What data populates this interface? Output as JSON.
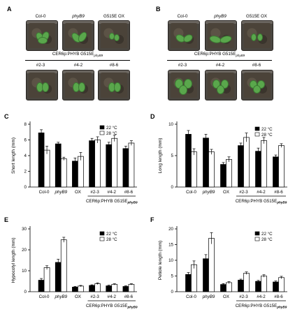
{
  "panels": {
    "A": {
      "label": "A",
      "top_labels": [
        "Col-0",
        "phyB9",
        "G515E OX"
      ],
      "construct": "CER6p:PHYB G515E",
      "construct_sub": "phyB9",
      "bottom_labels": [
        "#2-3",
        "#4-2",
        "#8-6"
      ]
    },
    "B": {
      "label": "B",
      "top_labels": [
        "Col-0",
        "phyB9",
        "G515E OX"
      ],
      "construct": "CER6p:PHYB G515E",
      "construct_sub": "phyB9",
      "bottom_labels": [
        "#2-3",
        "#4-2",
        "#8-6"
      ]
    }
  },
  "legend": {
    "s22": "22 °C",
    "s28": "28 °C"
  },
  "group_label": "CER6p:PHYB G515E",
  "group_label_sub": "phyB9",
  "chart_data": [
    {
      "id": "C",
      "type": "bar",
      "ylabel": "Short length (mm)",
      "ylim": [
        0,
        8
      ],
      "yticks": [
        0,
        2,
        4,
        6,
        8
      ],
      "categories": [
        "Col-0",
        "phyB9",
        "OX",
        "#2-3",
        "#4-2",
        "#8-6"
      ],
      "series": [
        {
          "name": "22 °C",
          "values": [
            6.9,
            5.5,
            3.3,
            5.9,
            5.4,
            4.9
          ],
          "errors": [
            0.4,
            0.2,
            0.4,
            0.3,
            0.3,
            0.3
          ]
        },
        {
          "name": "28 °C",
          "values": [
            4.7,
            3.6,
            3.9,
            6.0,
            6.2,
            5.6
          ],
          "errors": [
            0.5,
            0.2,
            0.5,
            0.4,
            0.4,
            0.3
          ]
        }
      ]
    },
    {
      "id": "D",
      "type": "bar",
      "ylabel": "Long length (mm)",
      "ylim": [
        0,
        10
      ],
      "yticks": [
        0,
        5,
        10
      ],
      "categories": [
        "Col-0",
        "phyB9",
        "OX",
        "#2-3",
        "#4-2",
        "#8-6"
      ],
      "series": [
        {
          "name": "22 °C",
          "values": [
            8.4,
            7.8,
            3.6,
            6.6,
            5.7,
            4.8
          ],
          "errors": [
            0.6,
            0.6,
            0.3,
            0.4,
            0.5,
            0.3
          ]
        },
        {
          "name": "28 °C",
          "values": [
            5.6,
            5.6,
            4.4,
            7.9,
            7.4,
            6.6
          ],
          "errors": [
            0.5,
            0.4,
            0.4,
            0.7,
            0.5,
            0.3
          ]
        }
      ]
    },
    {
      "id": "E",
      "type": "bar",
      "ylabel": "Hypocotyl length (mm)",
      "ylim": [
        0,
        30
      ],
      "yticks": [
        0,
        10,
        20,
        30
      ],
      "categories": [
        "Col-0",
        "phyB9",
        "OX",
        "#2-3",
        "#4-2",
        "#8-6"
      ],
      "series": [
        {
          "name": "22 °C",
          "values": [
            5.5,
            14.0,
            2.2,
            3.0,
            2.8,
            2.5
          ],
          "errors": [
            0.8,
            1.5,
            0.3,
            0.3,
            0.3,
            0.3
          ]
        },
        {
          "name": "28 °C",
          "values": [
            11.5,
            24.8,
            2.7,
            3.8,
            3.5,
            3.5
          ],
          "errors": [
            0.9,
            1.2,
            0.3,
            0.4,
            0.3,
            0.3
          ]
        }
      ]
    },
    {
      "id": "F",
      "type": "bar",
      "ylabel": "Petiole length (mm)",
      "ylim": [
        0,
        20
      ],
      "yticks": [
        0,
        5,
        10,
        15,
        20
      ],
      "categories": [
        "Col-0",
        "phyB9",
        "OX",
        "#2-3",
        "#4-2",
        "#8-6"
      ],
      "series": [
        {
          "name": "22 °C",
          "values": [
            5.5,
            10.5,
            2.3,
            3.7,
            3.3,
            3.1
          ],
          "errors": [
            0.6,
            1.3,
            0.3,
            0.3,
            0.3,
            0.3
          ]
        },
        {
          "name": "28 °C",
          "values": [
            8.6,
            17.0,
            2.9,
            5.9,
            5.0,
            4.5
          ],
          "errors": [
            1.2,
            1.8,
            0.3,
            0.4,
            0.4,
            0.4
          ]
        }
      ]
    }
  ]
}
